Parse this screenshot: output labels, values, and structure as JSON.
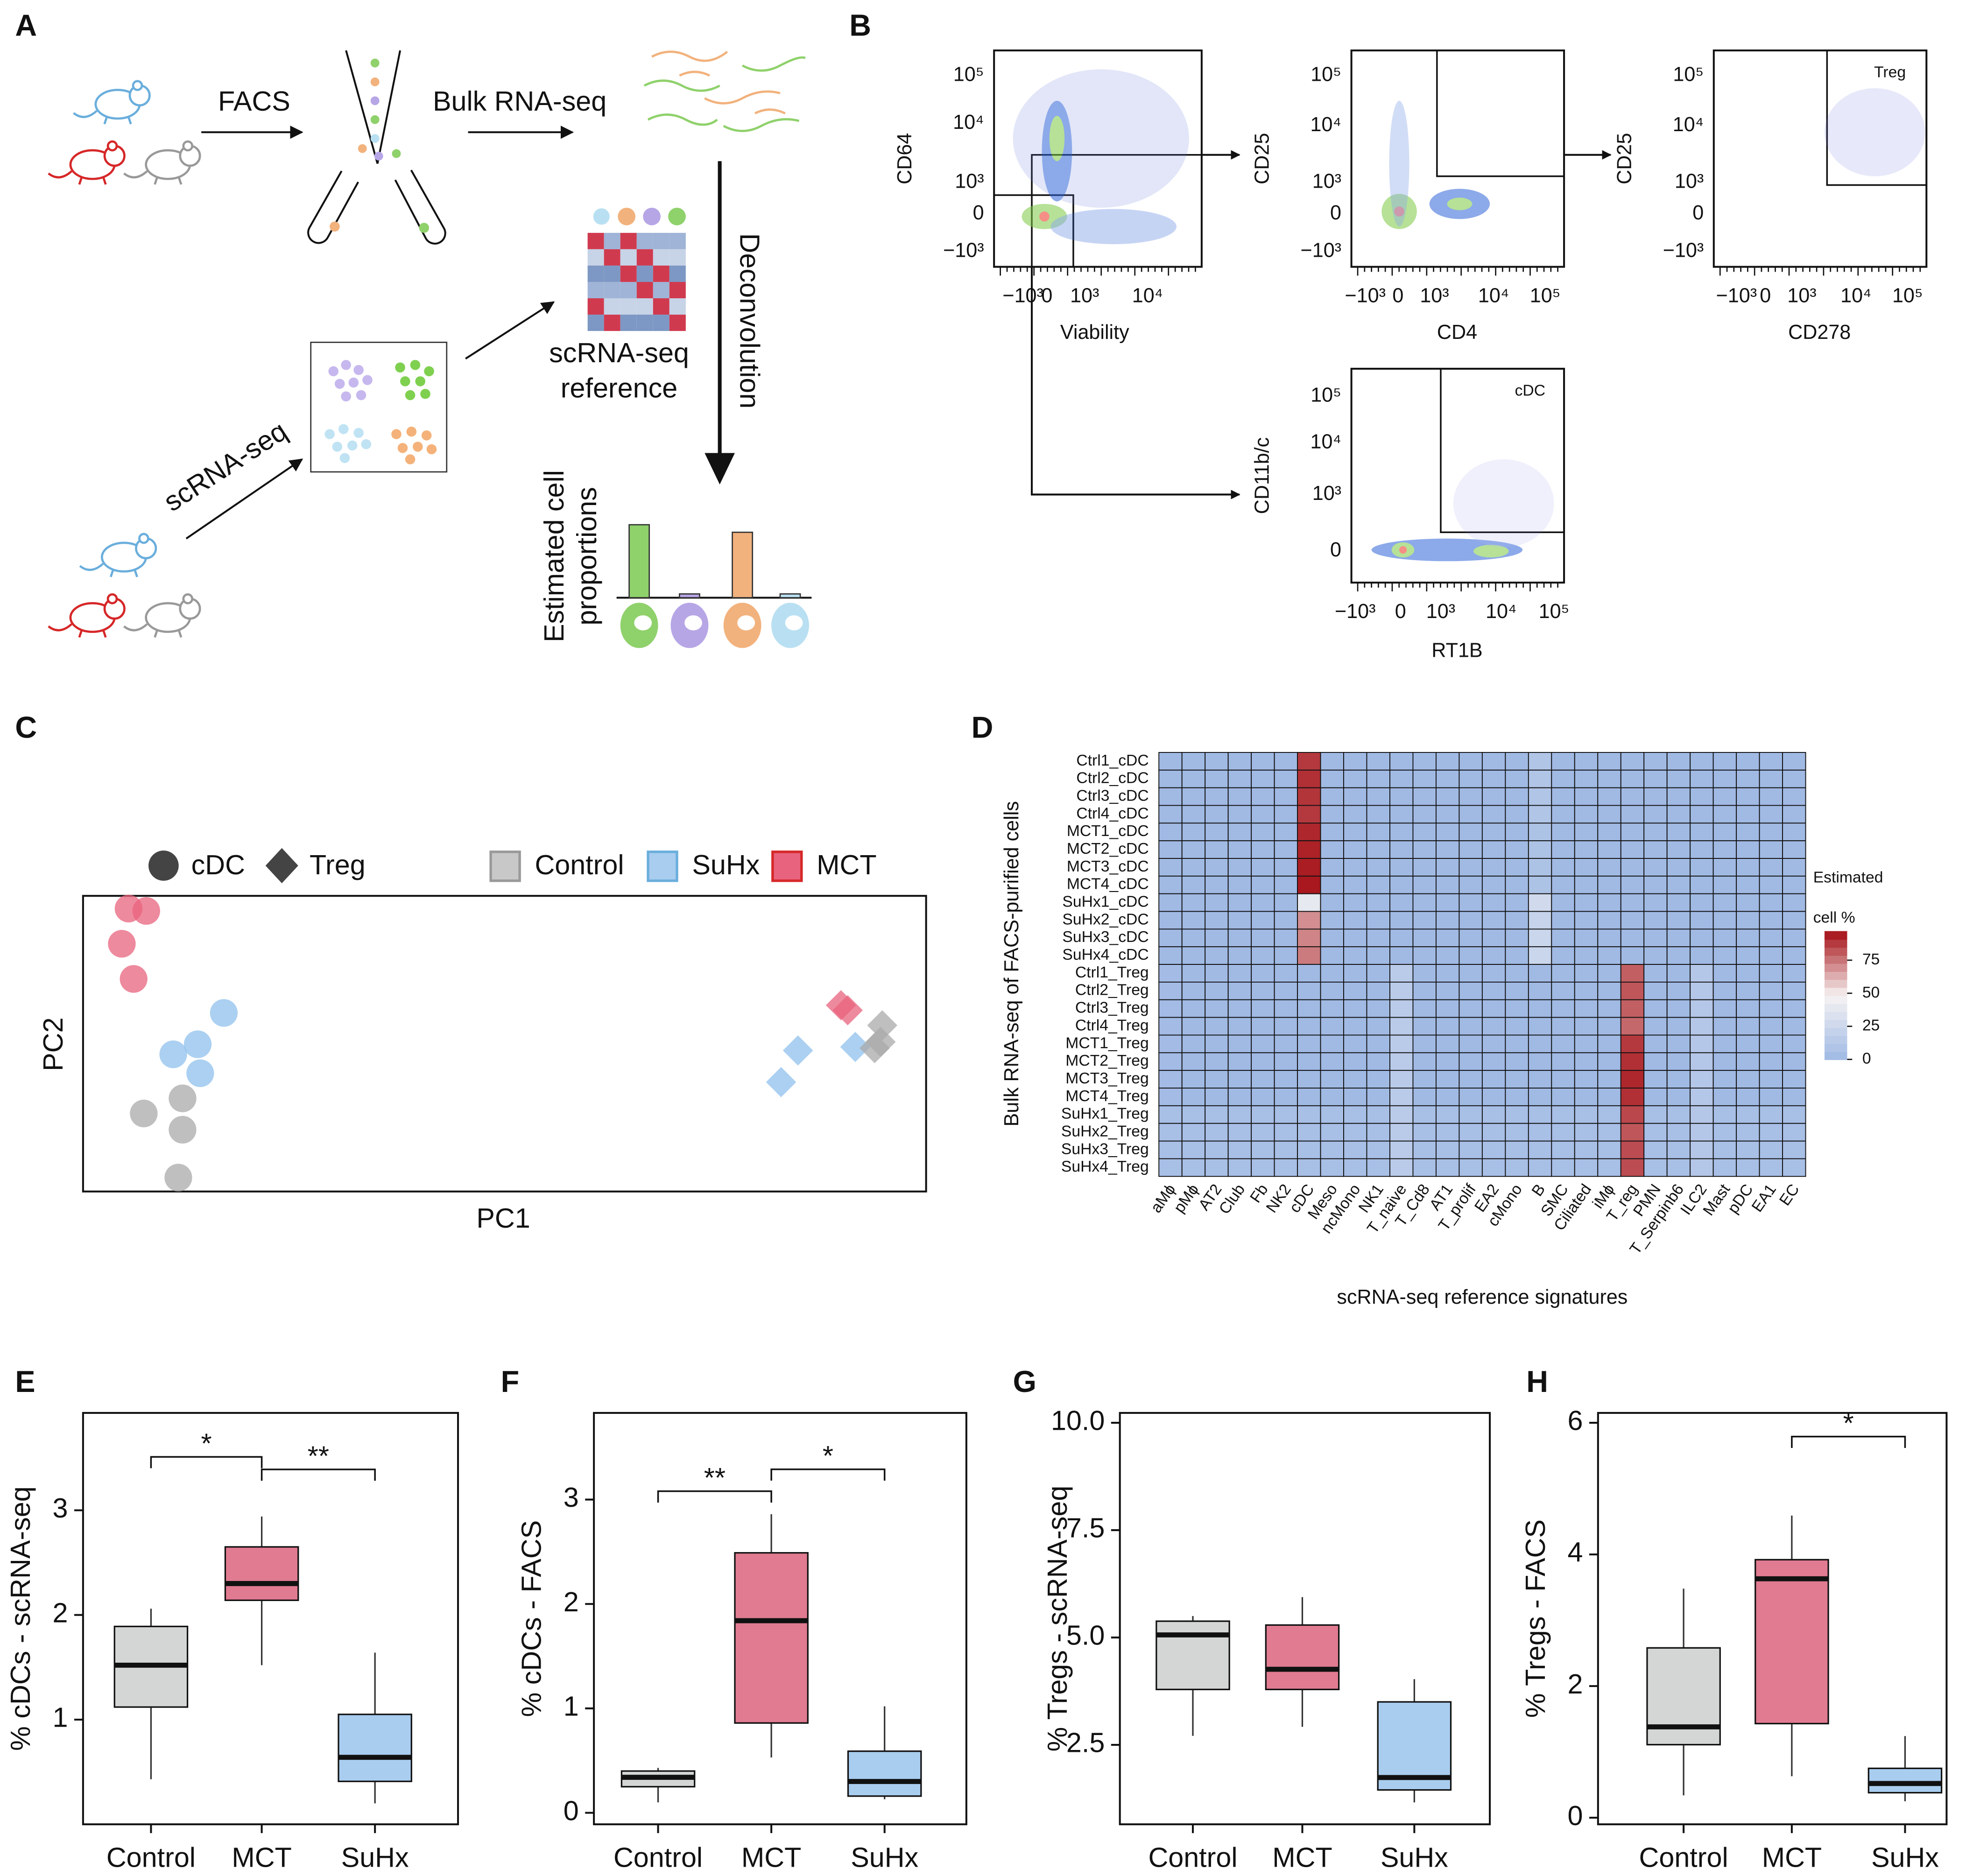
{
  "panel_labels": [
    "A",
    "B",
    "C",
    "D",
    "E",
    "F",
    "G",
    "H"
  ],
  "diagram": {
    "facs": "FACS",
    "bulk": "Bulk RNA-seq",
    "deconvolution": "Deconvolution",
    "reference": [
      "scRNA-seq",
      "reference"
    ],
    "scrna": "scRNA-seq",
    "estimated": [
      "Estimated cell",
      "proportions"
    ],
    "bars": [
      {
        "color": "#8fd16b",
        "value": 58
      },
      {
        "color": "#b7a6e6",
        "value": 3
      },
      {
        "color": "#f2b27d",
        "value": 52
      },
      {
        "color": "#b9e0f2",
        "value": 3
      }
    ]
  },
  "flow": {
    "plots": [
      {
        "ylabel": "CD64",
        "xlabel": "Viability",
        "yticks": [
          "10⁵",
          "10⁴",
          "10³",
          "0",
          "−10³"
        ],
        "xticks": [
          "−10³",
          "0",
          "10³",
          "10⁴"
        ]
      },
      {
        "ylabel": "CD25",
        "xlabel": "CD4",
        "yticks": [
          "10⁵",
          "10⁴",
          "10³",
          "0",
          "−10³"
        ],
        "xticks": [
          "−10³",
          "0",
          "10³",
          "10⁴",
          "10⁵"
        ]
      },
      {
        "ylabel": "CD25",
        "xlabel": "CD278",
        "yticks": [
          "10⁵",
          "10⁴",
          "10³",
          "0",
          "−10³"
        ],
        "xticks": [
          "−10³",
          "0",
          "10³",
          "10⁴",
          "10⁵"
        ],
        "gate_label": "Treg"
      },
      {
        "ylabel": "CD11b/c",
        "xlabel": "RT1B",
        "yticks": [
          "10⁵",
          "10⁴",
          "10³",
          "0"
        ],
        "xticks": [
          "−10³",
          "0",
          "10³",
          "10⁴",
          "10⁵"
        ],
        "gate_label": "cDC"
      }
    ]
  },
  "chart_data": [
    {
      "type": "scatter",
      "xlabel": "PC1",
      "ylabel": "PC2",
      "xlim": [
        0,
        100
      ],
      "ylim": [
        0,
        100
      ],
      "shape_legend": [
        {
          "name": "cDC",
          "marker": "circle"
        },
        {
          "name": "Treg",
          "marker": "diamond"
        }
      ],
      "color_legend": [
        {
          "name": "Control",
          "color": "#c8c8c8",
          "edge": "#999999"
        },
        {
          "name": "SuHx",
          "color": "#a9cdef",
          "edge": "#6aaedc"
        },
        {
          "name": "MCT",
          "color": "#e8637e",
          "edge": "#d62728"
        }
      ],
      "series": [
        {
          "color": "#e8637e",
          "marker": "circle",
          "x": [
            5.4,
            7.5,
            4.6,
            6.0
          ],
          "y": [
            95.7,
            94.9,
            83.8,
            71.9
          ]
        },
        {
          "color": "#8fc0ec",
          "marker": "circle",
          "x": [
            16.7,
            13.6,
            10.7,
            13.9
          ],
          "y": [
            60.4,
            49.8,
            46.4,
            40.0
          ]
        },
        {
          "color": "#a9a9a9",
          "marker": "circle",
          "x": [
            7.2,
            11.8,
            11.8,
            11.3
          ],
          "y": [
            26.4,
            31.5,
            20.9,
            4.7
          ]
        },
        {
          "color": "#e8637e",
          "marker": "diamond",
          "x": [
            89.9,
            90.7
          ],
          "y": [
            63.0,
            61.3
          ]
        },
        {
          "color": "#8fc0ec",
          "marker": "diamond",
          "x": [
            84.8,
            82.8,
            91.6
          ],
          "y": [
            47.7,
            37.0,
            48.9
          ]
        },
        {
          "color": "#a9a9a9",
          "marker": "diamond",
          "x": [
            94.8,
            94.6,
            93.9
          ],
          "y": [
            56.2,
            50.6,
            48.5
          ]
        }
      ]
    },
    {
      "type": "heatmap",
      "ylabel": "Bulk RNA-seq of FACS-purified cells",
      "xlabel": "scRNA-seq reference signatures",
      "legend_title": [
        "Estimated",
        "cell %"
      ],
      "clim": [
        0,
        97
      ],
      "cticks": [
        0,
        25,
        50,
        75
      ],
      "colors": [
        "#9fb9e4",
        "#f6f3f3",
        "#a50f15"
      ],
      "rows": [
        "Ctrl1_cDC",
        "Ctrl2_cDC",
        "Ctrl3_cDC",
        "Ctrl4_cDC",
        "MCT1_cDC",
        "MCT2_cDC",
        "MCT3_cDC",
        "MCT4_cDC",
        "SuHx1_cDC",
        "SuHx2_cDC",
        "SuHx3_cDC",
        "SuHx4_cDC",
        "Ctrl1_Treg",
        "Ctrl2_Treg",
        "Ctrl3_Treg",
        "Ctrl4_Treg",
        "MCT1_Treg",
        "MCT2_Treg",
        "MCT3_Treg",
        "MCT4_Treg",
        "SuHx1_Treg",
        "SuHx2_Treg",
        "SuHx3_Treg",
        "SuHx4_Treg"
      ],
      "columns": [
        "aMϕ",
        "pMϕ",
        "AT2",
        "Club",
        "Fb",
        "NK2",
        "cDC",
        "Meso",
        "ncMono",
        "NK1",
        "T_naive",
        "T_Cd8",
        "AT1",
        "T_prolif",
        "EA2",
        "cMono",
        "B",
        "SMC",
        "Ciliated",
        "iMϕ",
        "T_reg",
        "PMN",
        "T_Serpinb6",
        "ILC2",
        "Mast",
        "pDC",
        "EA1",
        "EC"
      ],
      "values": [
        [
          1,
          1,
          1,
          1,
          1,
          1,
          88,
          1,
          1,
          1,
          1,
          1,
          1,
          1,
          1,
          1,
          10,
          1,
          1,
          1,
          1,
          1,
          1,
          1,
          1,
          1,
          1,
          1
        ],
        [
          1,
          1,
          1,
          1,
          1,
          1,
          90,
          1,
          1,
          1,
          1,
          1,
          1,
          1,
          1,
          1,
          10,
          1,
          1,
          1,
          1,
          1,
          1,
          1,
          1,
          1,
          1,
          1
        ],
        [
          1,
          1,
          1,
          1,
          1,
          1,
          89,
          1,
          1,
          1,
          1,
          1,
          1,
          1,
          1,
          1,
          10,
          1,
          1,
          1,
          1,
          1,
          1,
          1,
          1,
          1,
          1,
          1
        ],
        [
          1,
          1,
          1,
          1,
          1,
          1,
          88,
          1,
          1,
          1,
          1,
          1,
          1,
          1,
          1,
          1,
          10,
          1,
          1,
          1,
          1,
          1,
          1,
          1,
          1,
          1,
          1,
          1
        ],
        [
          1,
          1,
          1,
          1,
          1,
          1,
          92,
          1,
          1,
          1,
          1,
          1,
          1,
          1,
          1,
          1,
          8,
          1,
          1,
          1,
          1,
          1,
          1,
          1,
          1,
          1,
          1,
          1
        ],
        [
          1,
          1,
          1,
          1,
          1,
          1,
          93,
          1,
          1,
          1,
          1,
          1,
          1,
          1,
          1,
          1,
          8,
          1,
          1,
          1,
          1,
          1,
          1,
          1,
          1,
          1,
          1,
          1
        ],
        [
          1,
          1,
          1,
          1,
          1,
          1,
          94,
          1,
          1,
          1,
          1,
          1,
          1,
          1,
          1,
          1,
          8,
          1,
          1,
          1,
          1,
          1,
          1,
          1,
          1,
          1,
          1,
          1
        ],
        [
          1,
          1,
          1,
          1,
          1,
          1,
          95,
          1,
          1,
          1,
          1,
          1,
          1,
          1,
          1,
          1,
          8,
          1,
          1,
          1,
          1,
          1,
          1,
          1,
          1,
          1,
          1,
          1
        ],
        [
          1,
          1,
          1,
          1,
          1,
          1,
          40,
          1,
          1,
          1,
          1,
          1,
          1,
          1,
          1,
          1,
          28,
          1,
          1,
          1,
          1,
          1,
          1,
          1,
          1,
          1,
          1,
          1
        ],
        [
          1,
          1,
          1,
          1,
          1,
          1,
          70,
          1,
          1,
          1,
          1,
          1,
          1,
          1,
          1,
          1,
          22,
          1,
          1,
          1,
          1,
          1,
          1,
          1,
          1,
          1,
          1,
          1
        ],
        [
          1,
          1,
          1,
          1,
          1,
          1,
          72,
          1,
          1,
          1,
          1,
          1,
          1,
          1,
          1,
          1,
          24,
          1,
          1,
          1,
          1,
          1,
          1,
          1,
          1,
          1,
          1,
          1
        ],
        [
          1,
          1,
          1,
          1,
          1,
          1,
          74,
          1,
          1,
          1,
          1,
          1,
          1,
          1,
          1,
          1,
          24,
          1,
          1,
          1,
          1,
          1,
          1,
          1,
          1,
          1,
          1,
          1
        ],
        [
          2,
          1,
          1,
          1,
          1,
          1,
          1,
          1,
          1,
          1,
          15,
          1,
          1,
          1,
          1,
          1,
          1,
          1,
          1,
          1,
          80,
          1,
          1,
          12,
          1,
          1,
          1,
          1
        ],
        [
          2,
          1,
          1,
          1,
          1,
          1,
          1,
          1,
          1,
          1,
          15,
          1,
          1,
          1,
          1,
          1,
          1,
          1,
          1,
          1,
          82,
          1,
          1,
          12,
          1,
          1,
          1,
          1
        ],
        [
          2,
          1,
          1,
          1,
          1,
          1,
          1,
          1,
          1,
          1,
          15,
          1,
          1,
          1,
          1,
          1,
          1,
          1,
          1,
          1,
          80,
          1,
          1,
          12,
          1,
          1,
          1,
          1
        ],
        [
          2,
          1,
          1,
          1,
          1,
          1,
          1,
          1,
          1,
          1,
          15,
          1,
          1,
          1,
          1,
          1,
          1,
          1,
          1,
          1,
          78,
          1,
          1,
          12,
          1,
          1,
          1,
          1
        ],
        [
          2,
          1,
          1,
          1,
          1,
          1,
          1,
          1,
          1,
          1,
          15,
          1,
          1,
          1,
          1,
          1,
          1,
          1,
          1,
          1,
          88,
          1,
          1,
          12,
          1,
          1,
          1,
          1
        ],
        [
          2,
          1,
          1,
          1,
          1,
          1,
          1,
          1,
          1,
          1,
          15,
          1,
          1,
          1,
          1,
          1,
          1,
          1,
          1,
          1,
          90,
          1,
          1,
          12,
          1,
          1,
          1,
          1
        ],
        [
          2,
          1,
          1,
          1,
          1,
          1,
          1,
          1,
          1,
          1,
          15,
          1,
          1,
          1,
          1,
          1,
          1,
          1,
          1,
          1,
          92,
          1,
          1,
          12,
          1,
          1,
          1,
          1
        ],
        [
          2,
          1,
          1,
          1,
          1,
          1,
          1,
          1,
          1,
          1,
          15,
          1,
          1,
          1,
          1,
          1,
          1,
          1,
          1,
          1,
          90,
          1,
          1,
          12,
          1,
          1,
          1,
          1
        ],
        [
          5,
          5,
          5,
          5,
          5,
          5,
          5,
          5,
          5,
          5,
          15,
          5,
          5,
          5,
          5,
          5,
          5,
          5,
          5,
          5,
          85,
          5,
          5,
          12,
          5,
          5,
          5,
          5
        ],
        [
          5,
          5,
          5,
          5,
          5,
          5,
          5,
          5,
          5,
          5,
          15,
          5,
          5,
          5,
          5,
          5,
          5,
          5,
          5,
          5,
          82,
          5,
          5,
          12,
          5,
          5,
          5,
          5
        ],
        [
          5,
          5,
          5,
          5,
          5,
          5,
          5,
          5,
          5,
          5,
          15,
          5,
          5,
          5,
          5,
          5,
          5,
          5,
          5,
          5,
          84,
          5,
          5,
          12,
          5,
          5,
          5,
          5
        ],
        [
          5,
          5,
          5,
          5,
          5,
          5,
          5,
          5,
          5,
          5,
          15,
          5,
          5,
          5,
          5,
          5,
          5,
          5,
          5,
          5,
          84,
          5,
          5,
          12,
          5,
          5,
          5,
          5
        ]
      ]
    },
    {
      "type": "box",
      "ylabel": "% cDCs - scRNA-seq",
      "categories": [
        "Control",
        "MCT",
        "SuHx"
      ],
      "colors": [
        "#d3d6d5",
        "#e07b91",
        "#a9cdef"
      ],
      "ylim": [
        0,
        3.93
      ],
      "yticks": [
        1,
        2,
        3
      ],
      "boxes": [
        {
          "whislo": 0.43,
          "q1": 1.12,
          "med": 1.52,
          "q3": 1.89,
          "whishi": 2.06
        },
        {
          "whislo": 1.52,
          "q1": 2.14,
          "med": 2.3,
          "q3": 2.65,
          "whishi": 2.94
        },
        {
          "whislo": 0.2,
          "q1": 0.41,
          "med": 0.64,
          "q3": 1.05,
          "whishi": 1.64
        }
      ],
      "brackets": [
        {
          "from": 0,
          "to": 1,
          "y": 3.51,
          "label": "*"
        },
        {
          "from": 1,
          "to": 2,
          "y": 3.39,
          "label": "**"
        }
      ]
    },
    {
      "type": "box",
      "ylabel": "% cDCs - FACS",
      "categories": [
        "Control",
        "MCT",
        "SuHx"
      ],
      "colors": [
        "#d3d6d5",
        "#e07b91",
        "#a9cdef"
      ],
      "ylim": [
        -0.11,
        3.83
      ],
      "yticks": [
        0,
        1,
        2,
        3
      ],
      "boxes": [
        {
          "whislo": 0.1,
          "q1": 0.25,
          "med": 0.34,
          "q3": 0.4,
          "whishi": 0.43
        },
        {
          "whislo": 0.53,
          "q1": 0.86,
          "med": 1.84,
          "q3": 2.49,
          "whishi": 2.86
        },
        {
          "whislo": 0.13,
          "q1": 0.16,
          "med": 0.3,
          "q3": 0.59,
          "whishi": 1.02
        }
      ],
      "brackets": [
        {
          "from": 0,
          "to": 1,
          "y": 3.08,
          "label": "**"
        },
        {
          "from": 1,
          "to": 2,
          "y": 3.29,
          "label": "*"
        }
      ]
    },
    {
      "type": "box",
      "ylabel": "% Tregs - scRNA-seq",
      "categories": [
        "Control",
        "MCT",
        "SuHx"
      ],
      "colors": [
        "#d3d6d5",
        "#e07b91",
        "#a9cdef"
      ],
      "ylim": [
        0.65,
        10.23
      ],
      "yticks": [
        2.5,
        {
          "value": 5,
          "label": "5.0"
        },
        7.5,
        {
          "value": 10,
          "label": "10.0"
        }
      ],
      "boxes": [
        {
          "whislo": 2.71,
          "q1": 3.79,
          "med": 5.06,
          "q3": 5.38,
          "whishi": 5.5
        },
        {
          "whislo": 2.92,
          "q1": 3.79,
          "med": 4.26,
          "q3": 5.29,
          "whishi": 5.94
        },
        {
          "whislo": 1.16,
          "q1": 1.45,
          "med": 1.74,
          "q3": 3.5,
          "whishi": 4.03
        }
      ],
      "brackets": []
    },
    {
      "type": "box",
      "ylabel": "% Tregs - FACS",
      "categories": [
        "Control",
        "MCT",
        "SuHx"
      ],
      "colors": [
        "#d3d6d5",
        "#e07b91",
        "#a9cdef"
      ],
      "ylim": [
        -0.1,
        6.15
      ],
      "yticks": [
        0,
        2,
        4,
        6
      ],
      "boxes": [
        {
          "whislo": 0.34,
          "q1": 1.11,
          "med": 1.38,
          "q3": 2.58,
          "whishi": 3.48
        },
        {
          "whislo": 0.63,
          "q1": 1.43,
          "med": 3.63,
          "q3": 3.92,
          "whishi": 4.59
        },
        {
          "whislo": 0.25,
          "q1": 0.38,
          "med": 0.52,
          "q3": 0.75,
          "whishi": 1.24
        }
      ],
      "brackets": [
        {
          "from": 1,
          "to": 2,
          "y": 5.79,
          "label": "*"
        }
      ]
    }
  ]
}
